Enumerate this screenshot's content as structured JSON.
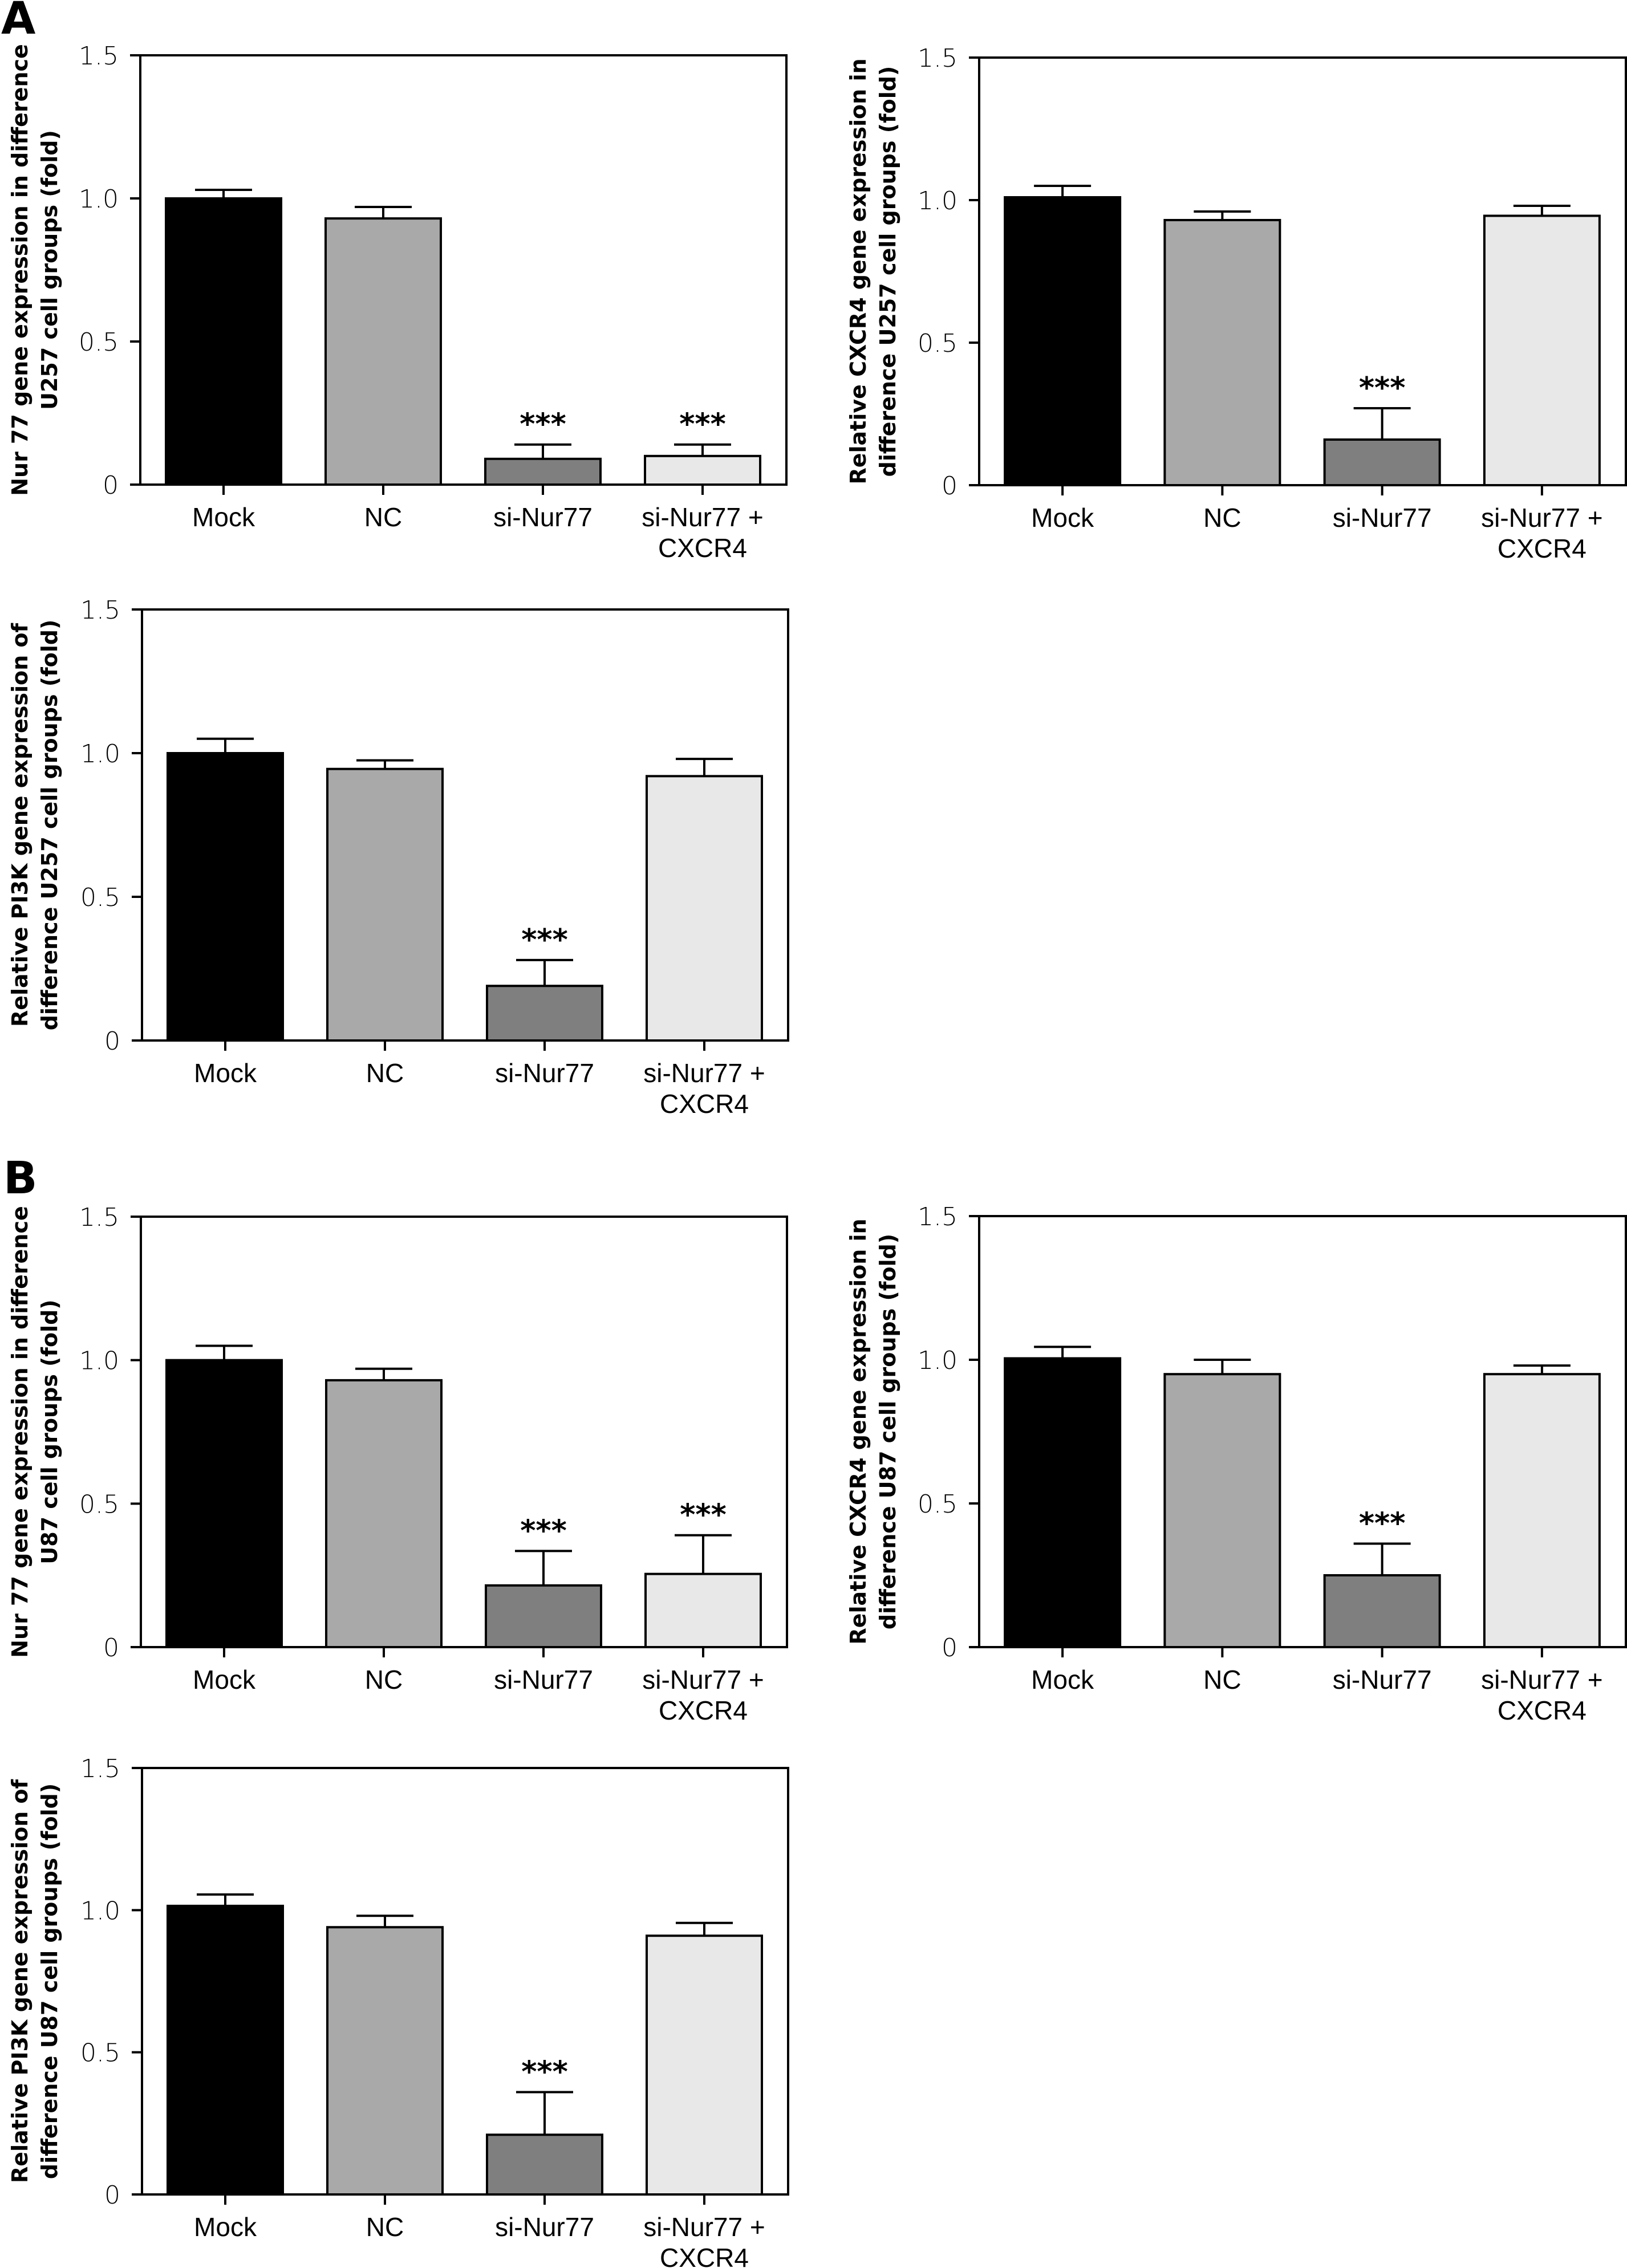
{
  "panel_letters": [
    "A",
    "B"
  ],
  "colors": {
    "Mock": "#000000",
    "NC": "#a9a9a9",
    "si-Nur77": "#7f7f7f",
    "si-Nur77 + CXCR4": "#e8e8e8",
    "outline": "#000000"
  },
  "chart_data": [
    {
      "type": "bar",
      "panel": "A",
      "ylabel": [
        "Nur 77 gene expression in difference",
        "U257 cell groups (fold)"
      ],
      "categories": [
        [
          "Mock"
        ],
        [
          "NC"
        ],
        [
          "si-Nur77"
        ],
        [
          "si-Nur77 +",
          "CXCR4"
        ]
      ],
      "values": [
        1.0,
        0.93,
        0.09,
        0.1
      ],
      "errors": [
        0.03,
        0.04,
        0.05,
        0.04
      ],
      "significance": [
        "",
        "",
        "***",
        "***"
      ],
      "ylim": [
        0,
        1.5
      ],
      "yticks": [
        "0",
        "0.5",
        "1.0",
        "1.5"
      ],
      "ytick_values": [
        0,
        0.5,
        1.0,
        1.5
      ],
      "grid": false
    },
    {
      "type": "bar",
      "panel": "A",
      "ylabel": [
        "Relative CXCR4 gene expression in",
        "difference U257 cell groups (fold)"
      ],
      "categories": [
        [
          "Mock"
        ],
        [
          "NC"
        ],
        [
          "si-Nur77"
        ],
        [
          "si-Nur77 +",
          "CXCR4"
        ]
      ],
      "values": [
        1.01,
        0.93,
        0.16,
        0.945
      ],
      "errors": [
        0.04,
        0.03,
        0.11,
        0.035
      ],
      "significance": [
        "",
        "",
        "***",
        ""
      ],
      "ylim": [
        0,
        1.5
      ],
      "yticks": [
        "0",
        "0.5",
        "1.0",
        "1.5"
      ],
      "ytick_values": [
        0,
        0.5,
        1.0,
        1.5
      ],
      "grid": false
    },
    {
      "type": "bar",
      "panel": "A",
      "ylabel": [
        "Relative PI3K gene expression of",
        "difference U257 cell groups (fold)"
      ],
      "categories": [
        [
          "Mock"
        ],
        [
          "NC"
        ],
        [
          "si-Nur77"
        ],
        [
          "si-Nur77 +",
          "CXCR4"
        ]
      ],
      "values": [
        1.0,
        0.945,
        0.19,
        0.92
      ],
      "errors": [
        0.05,
        0.03,
        0.09,
        0.06
      ],
      "significance": [
        "",
        "",
        "***",
        ""
      ],
      "ylim": [
        0,
        1.5
      ],
      "yticks": [
        "0",
        "0.5",
        "1.0",
        "1.5"
      ],
      "ytick_values": [
        0,
        0.5,
        1.0,
        1.5
      ],
      "grid": false
    },
    {
      "type": "bar",
      "panel": "B",
      "ylabel": [
        "Nur 77 gene expression in difference",
        "U87 cell groups (fold)"
      ],
      "categories": [
        [
          "Mock"
        ],
        [
          "NC"
        ],
        [
          "si-Nur77"
        ],
        [
          "si-Nur77 +",
          "CXCR4"
        ]
      ],
      "values": [
        1.0,
        0.93,
        0.215,
        0.255
      ],
      "errors": [
        0.05,
        0.04,
        0.12,
        0.135
      ],
      "significance": [
        "",
        "",
        "***",
        "***"
      ],
      "ylim": [
        0,
        1.5
      ],
      "yticks": [
        "0",
        "0.5",
        "1.0",
        "1.5"
      ],
      "ytick_values": [
        0,
        0.5,
        1.0,
        1.5
      ],
      "grid": false
    },
    {
      "type": "bar",
      "panel": "B",
      "ylabel": [
        "Relative CXCR4 gene expression in",
        "difference U87 cell groups (fold)"
      ],
      "categories": [
        [
          "Mock"
        ],
        [
          "NC"
        ],
        [
          "si-Nur77"
        ],
        [
          "si-Nur77 +",
          "CXCR4"
        ]
      ],
      "values": [
        1.005,
        0.95,
        0.25,
        0.95
      ],
      "errors": [
        0.04,
        0.05,
        0.11,
        0.03
      ],
      "significance": [
        "",
        "",
        "***",
        ""
      ],
      "ylim": [
        0,
        1.5
      ],
      "yticks": [
        "0",
        "0.5",
        "1.0",
        "1.5"
      ],
      "ytick_values": [
        0,
        0.5,
        1.0,
        1.5
      ],
      "grid": false
    },
    {
      "type": "bar",
      "panel": "B",
      "ylabel": [
        "Relative PI3K gene expression of",
        "difference U87 cell groups (fold)"
      ],
      "categories": [
        [
          "Mock"
        ],
        [
          "NC"
        ],
        [
          "si-Nur77"
        ],
        [
          "si-Nur77 +",
          "CXCR4"
        ]
      ],
      "values": [
        1.015,
        0.94,
        0.21,
        0.91
      ],
      "errors": [
        0.04,
        0.04,
        0.15,
        0.045
      ],
      "significance": [
        "",
        "",
        "***",
        ""
      ],
      "ylim": [
        0,
        1.5
      ],
      "yticks": [
        "0",
        "0.5",
        "1.0",
        "1.5"
      ],
      "ytick_values": [
        0,
        0.5,
        1.0,
        1.5
      ],
      "grid": false
    }
  ]
}
